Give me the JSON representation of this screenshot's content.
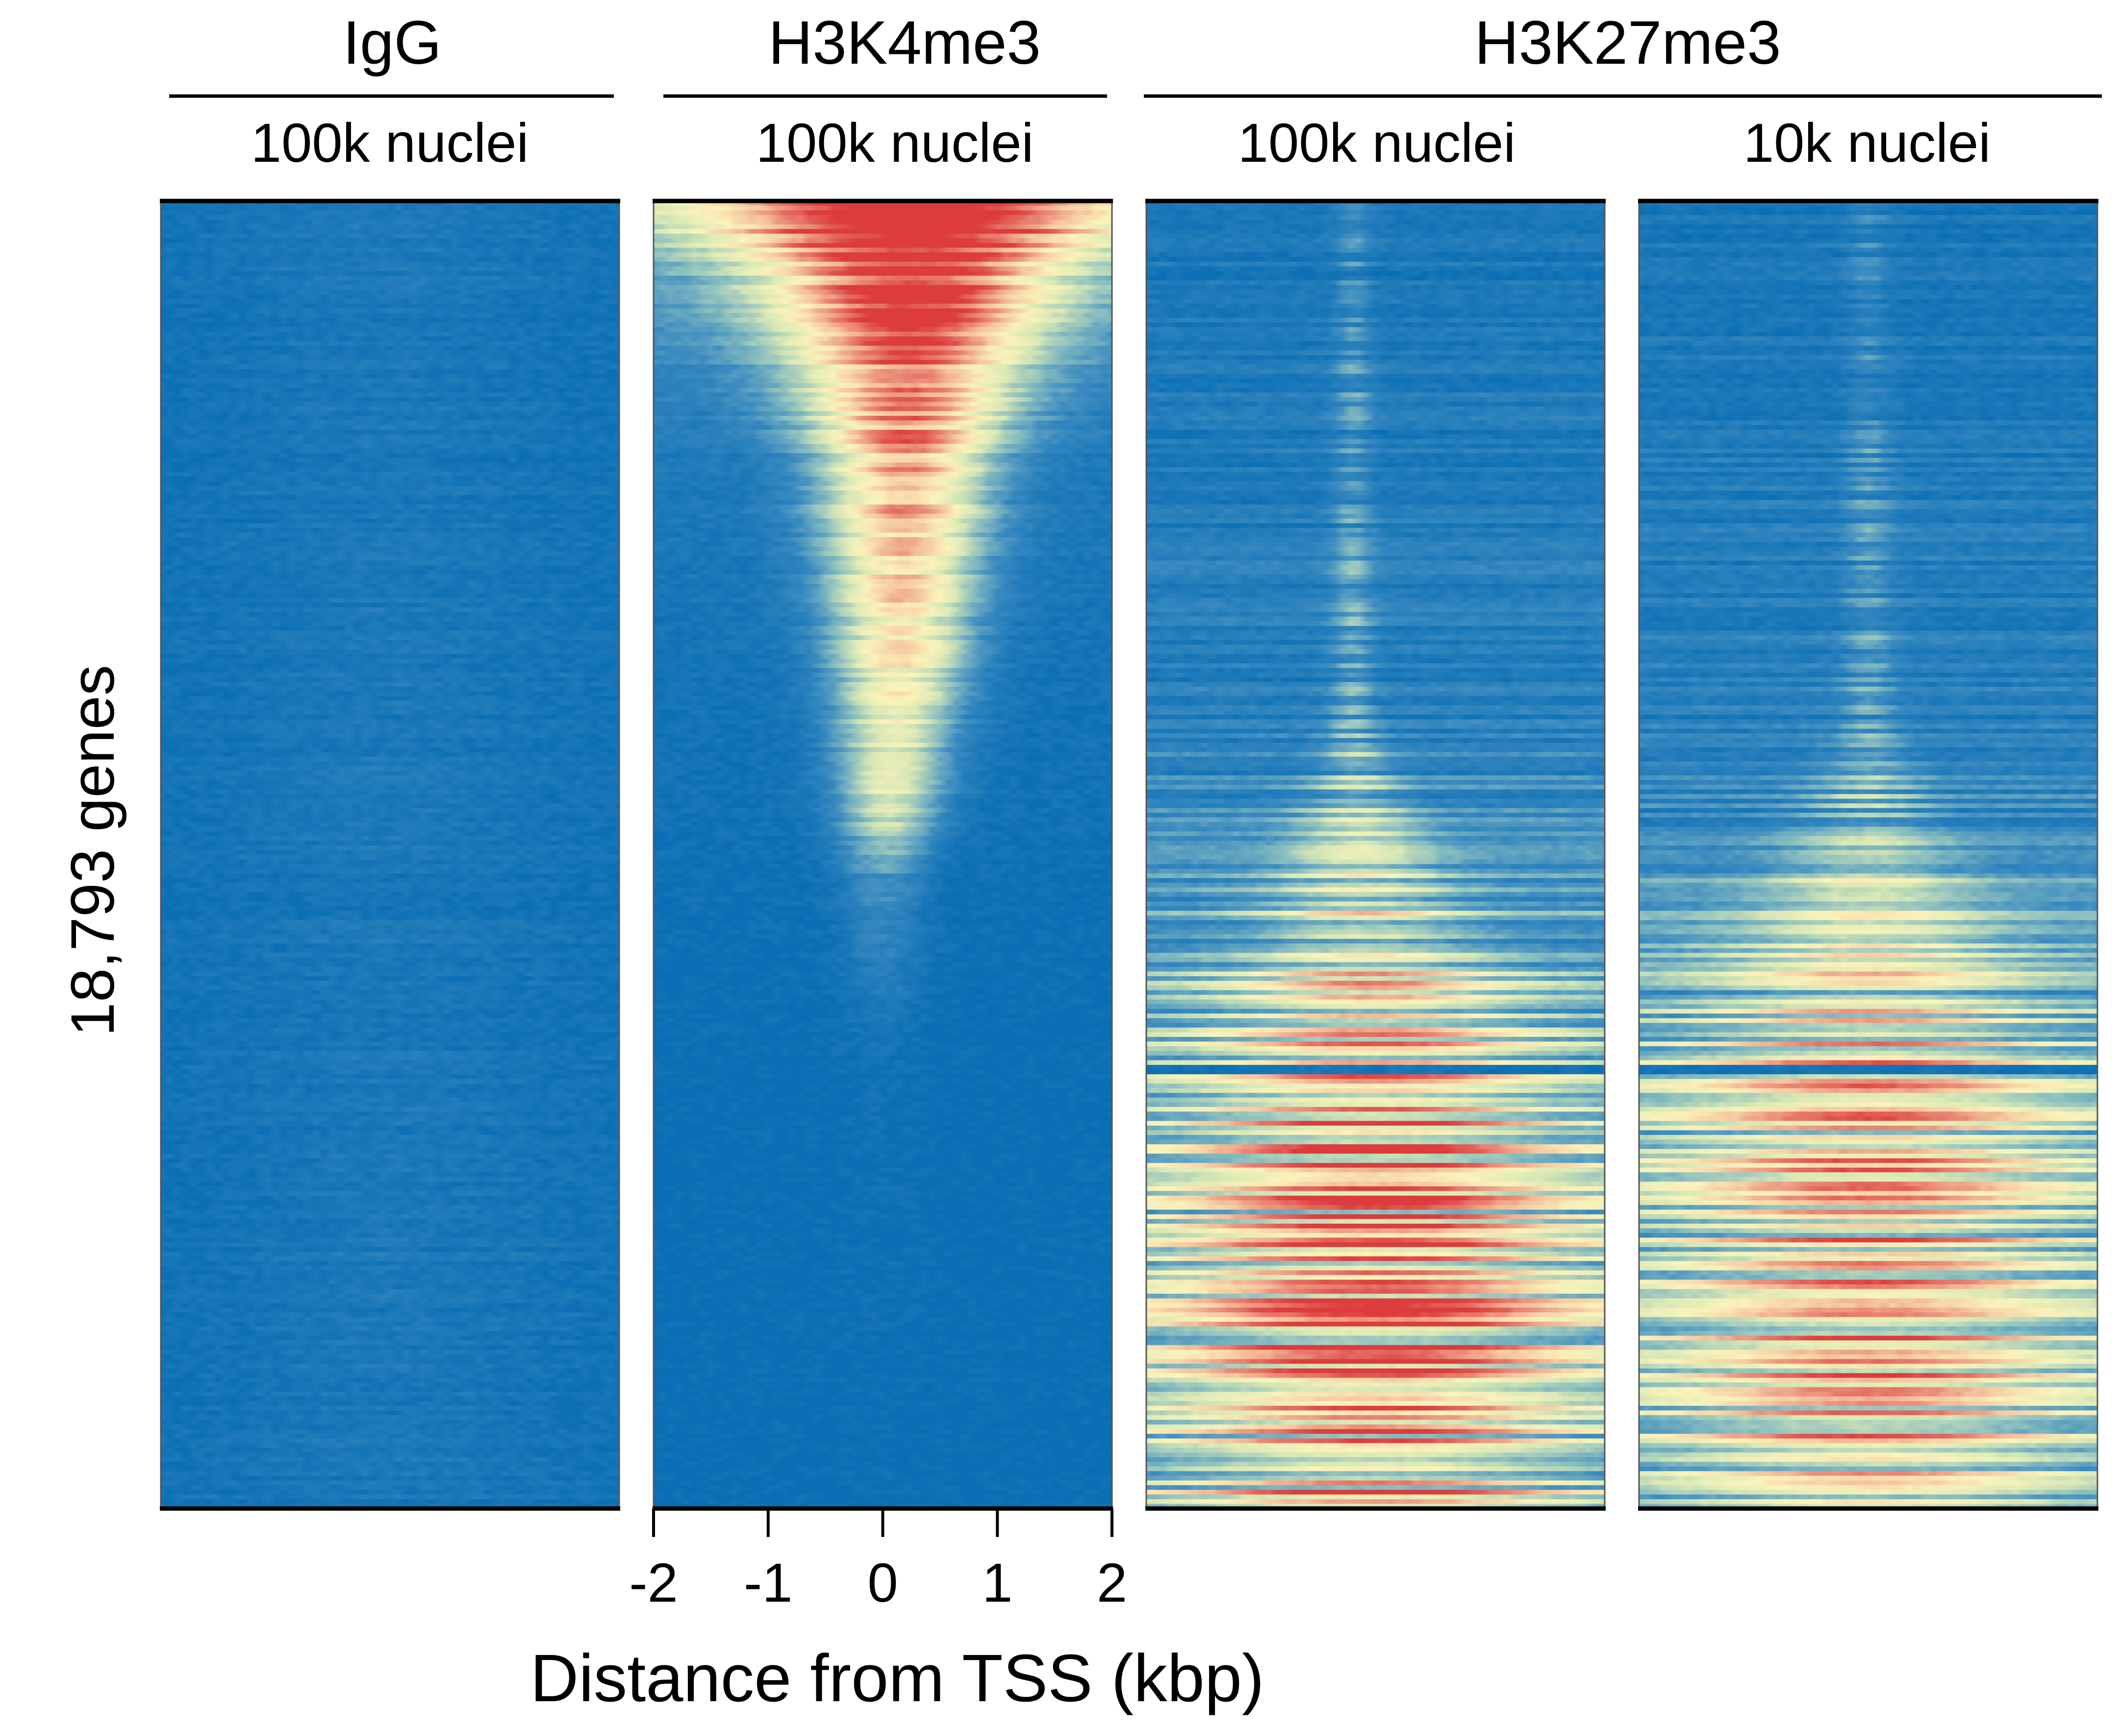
{
  "chart_data": {
    "type": "heatmap",
    "title": "",
    "ylabel": "18,793 genes",
    "xlabel": "Distance from TSS (kbp)",
    "rows": 18793,
    "x_ticks": [
      "-2",
      "-1",
      "0",
      "1",
      "2"
    ],
    "x_range": [
      -2,
      2
    ],
    "groups": [
      {
        "label": "IgG",
        "panels": [
          0
        ]
      },
      {
        "label": "H3K4me3",
        "panels": [
          1
        ]
      },
      {
        "label": "H3K27me3",
        "panels": [
          2,
          3
        ]
      }
    ],
    "panels": [
      {
        "id": "igg",
        "label": "100k nuclei",
        "profile": "background",
        "signal_rows": [
          {
            "row_fraction": 0.0,
            "peak": 0.03,
            "width_kbp": 1.0,
            "background": 0.02
          },
          {
            "row_fraction": 1.0,
            "peak": 0.03,
            "width_kbp": 1.0,
            "background": 0.02
          }
        ]
      },
      {
        "id": "h3k4me3",
        "label": "100k nuclei",
        "profile": "sharp-tss-peak",
        "signal_rows": [
          {
            "row_fraction": 0.0,
            "peak": 1.0,
            "width_kbp": 1.3,
            "background": 0.3,
            "center_kbp": 0.25
          },
          {
            "row_fraction": 0.06,
            "peak": 0.9,
            "width_kbp": 0.85,
            "background": 0.18,
            "center_kbp": 0.25
          },
          {
            "row_fraction": 0.2,
            "peak": 0.74,
            "width_kbp": 0.5,
            "background": 0.06,
            "center_kbp": 0.2
          },
          {
            "row_fraction": 0.35,
            "peak": 0.55,
            "width_kbp": 0.4,
            "background": 0.03,
            "center_kbp": 0.15
          },
          {
            "row_fraction": 0.47,
            "peak": 0.4,
            "width_kbp": 0.3,
            "background": 0.02,
            "center_kbp": 0.05
          },
          {
            "row_fraction": 0.52,
            "peak": 0.14,
            "width_kbp": 0.25,
            "background": 0.01,
            "center_kbp": 0.0
          },
          {
            "row_fraction": 0.66,
            "peak": 0.02,
            "width_kbp": 0.25,
            "background": 0.0,
            "center_kbp": 0.0
          },
          {
            "row_fraction": 1.0,
            "peak": 0.0,
            "width_kbp": 0.25,
            "background": 0.0,
            "center_kbp": 0.0
          }
        ]
      },
      {
        "id": "h3k27me3-100k",
        "label": "100k nuclei",
        "profile": "broad-domain",
        "signal_rows": [
          {
            "row_fraction": 0.0,
            "peak": 0.1,
            "width_kbp": 0.1,
            "background": 0.05,
            "center_kbp": -0.2
          },
          {
            "row_fraction": 0.4,
            "peak": 0.16,
            "width_kbp": 0.12,
            "background": 0.1,
            "center_kbp": -0.2
          },
          {
            "row_fraction": 0.55,
            "peak": 0.32,
            "width_kbp": 0.6,
            "background": 0.22,
            "center_kbp": -0.1
          },
          {
            "row_fraction": 0.65,
            "peak": 0.45,
            "width_kbp": 1.0,
            "background": 0.3,
            "center_kbp": 0.0
          },
          {
            "row_fraction": 0.85,
            "peak": 0.5,
            "width_kbp": 1.2,
            "background": 0.32,
            "center_kbp": 0.0
          },
          {
            "row_fraction": 1.0,
            "peak": 0.48,
            "width_kbp": 1.2,
            "background": 0.3,
            "center_kbp": 0.0
          }
        ]
      },
      {
        "id": "h3k27me3-10k",
        "label": "10k nuclei",
        "profile": "broad-domain",
        "signal_rows": [
          {
            "row_fraction": 0.0,
            "peak": 0.08,
            "width_kbp": 0.12,
            "background": 0.05,
            "center_kbp": 0.0
          },
          {
            "row_fraction": 0.4,
            "peak": 0.13,
            "width_kbp": 0.15,
            "background": 0.1,
            "center_kbp": 0.0
          },
          {
            "row_fraction": 0.55,
            "peak": 0.26,
            "width_kbp": 0.7,
            "background": 0.2,
            "center_kbp": 0.0
          },
          {
            "row_fraction": 0.65,
            "peak": 0.38,
            "width_kbp": 1.1,
            "background": 0.28,
            "center_kbp": 0.0
          },
          {
            "row_fraction": 0.85,
            "peak": 0.43,
            "width_kbp": 1.2,
            "background": 0.3,
            "center_kbp": 0.0
          },
          {
            "row_fraction": 1.0,
            "peak": 0.4,
            "width_kbp": 1.2,
            "background": 0.28,
            "center_kbp": 0.0
          }
        ]
      }
    ],
    "depletion_row_fraction": 0.665,
    "colorscale": [
      "#0a6eb4",
      "#3b8bc0",
      "#8cbfbf",
      "#d9e8b5",
      "#fbf3bb",
      "#f5c9a0",
      "#e88070",
      "#dc3c3c"
    ]
  }
}
